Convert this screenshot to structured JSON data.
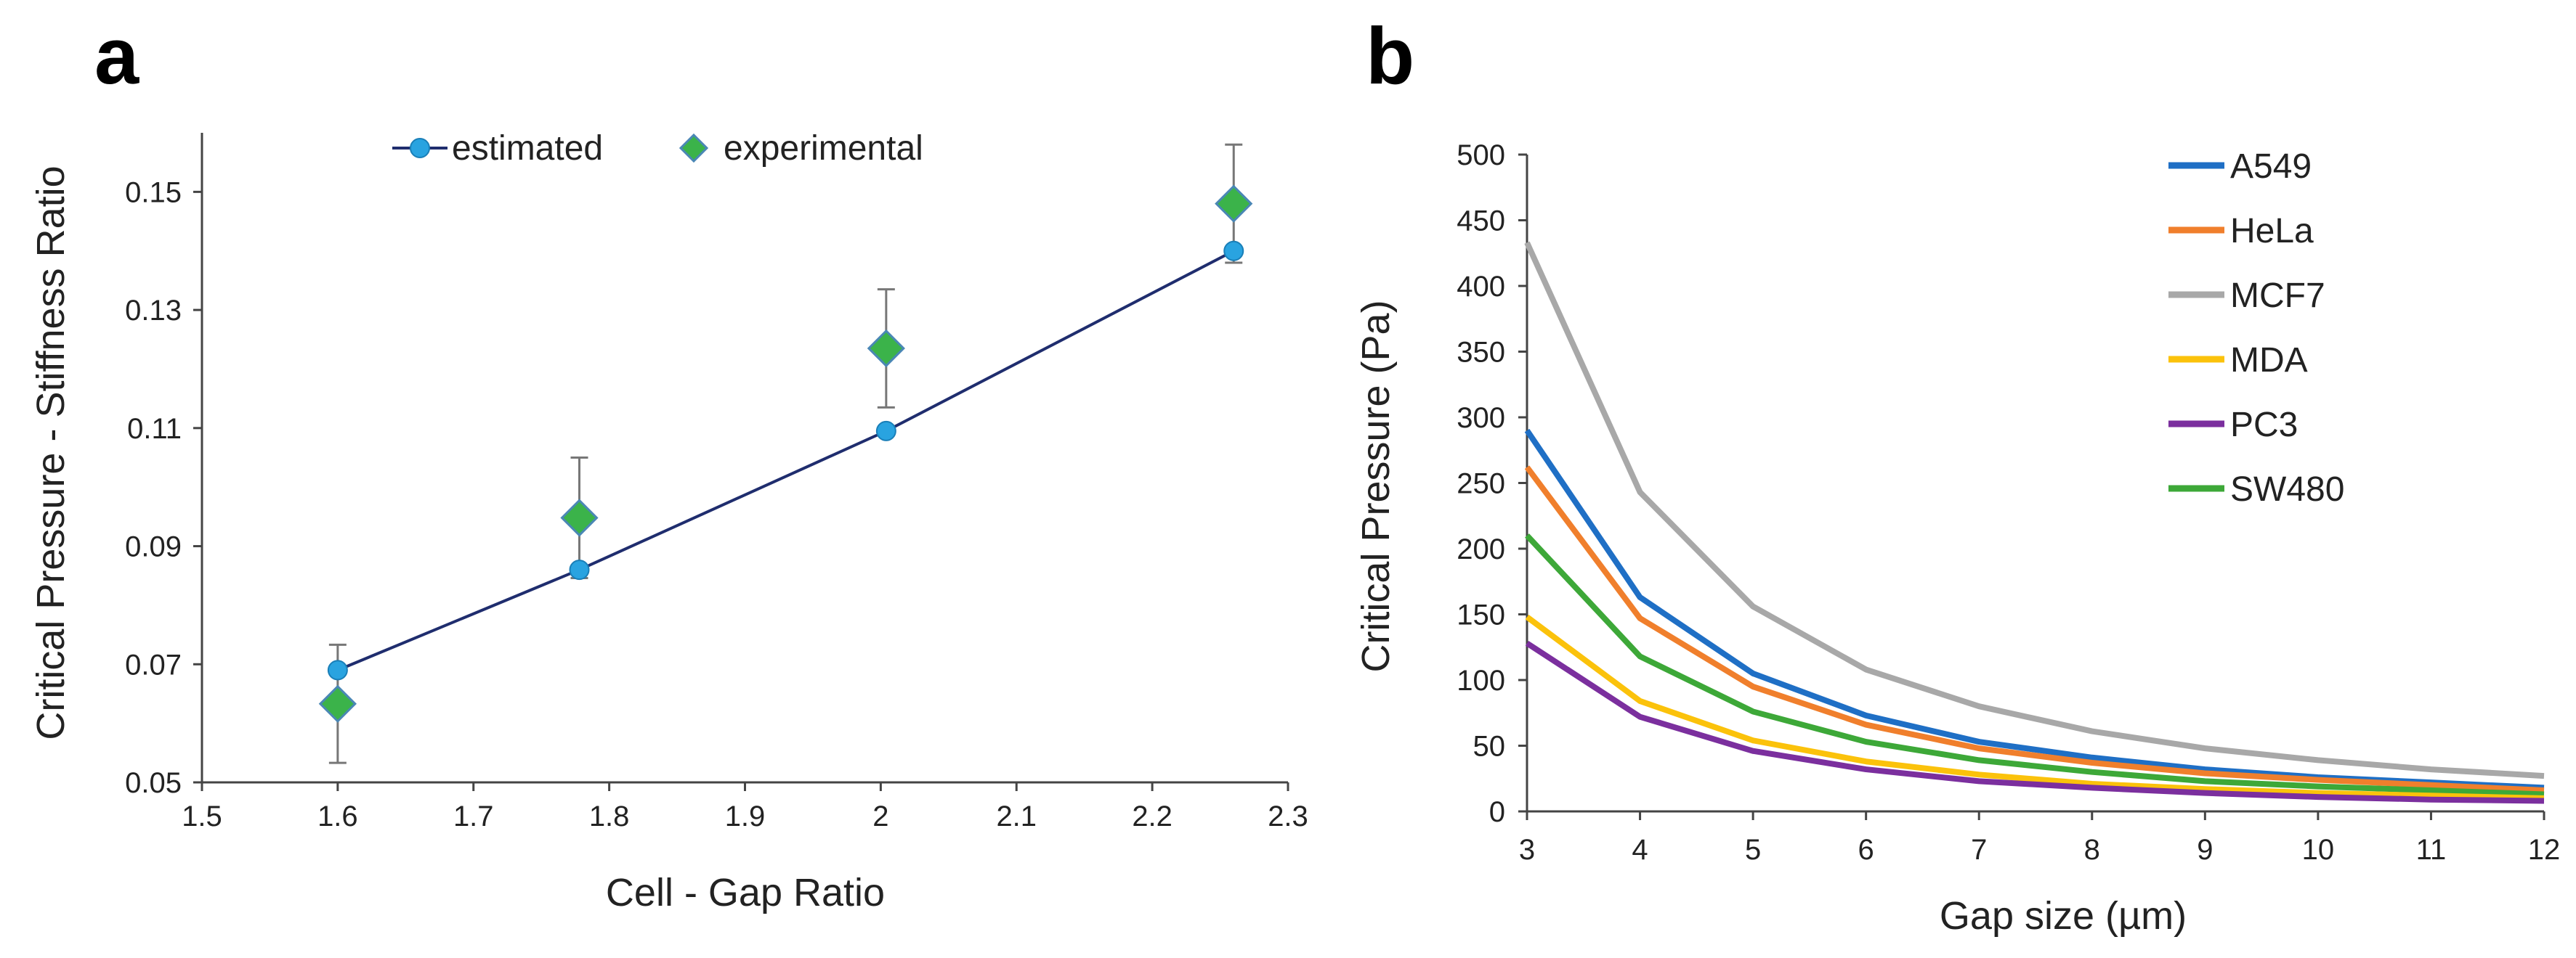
{
  "chart_data": [
    {
      "panel": "a",
      "type": "scatter",
      "xlabel": "Cell - Gap Ratio",
      "ylabel": "Critical Pressure - Stiffness Ratio",
      "xlim": [
        1.5,
        2.3
      ],
      "ylim": [
        0.05,
        0.16
      ],
      "xticks": [
        "1.5",
        "1.6",
        "1.7",
        "1.8",
        "1.9",
        "2",
        "2.1",
        "2.2",
        "2.3"
      ],
      "yticks": [
        "0.05",
        "0.07",
        "0.09",
        "0.11",
        "0.13",
        "0.15"
      ],
      "grid": false,
      "legend_position": "top",
      "series": [
        {
          "name": "estimated",
          "marker": "circle",
          "line": true,
          "color": "#1f2d6e",
          "marker_color": "#29a3e0",
          "x": [
            1.6,
            1.778,
            2.004,
            2.26
          ],
          "y": [
            0.069,
            0.086,
            0.1095,
            0.14
          ]
        },
        {
          "name": "experimental",
          "marker": "diamond",
          "line": false,
          "marker_color": "#3bb34a",
          "marker_edge": "#4a87b5",
          "x": [
            1.6,
            1.778,
            2.004,
            2.26
          ],
          "y": [
            0.0633,
            0.0948,
            0.1235,
            0.148
          ],
          "error": [
            0.01,
            0.0102,
            0.01,
            0.01
          ]
        }
      ]
    },
    {
      "panel": "b",
      "type": "line",
      "xlabel": "Gap size (µm)",
      "ylabel": "Critical Pressure (Pa)",
      "xlim": [
        3,
        12
      ],
      "ylim": [
        0,
        500
      ],
      "x": [
        3,
        4,
        5,
        6,
        7,
        8,
        9,
        10,
        11,
        12
      ],
      "xticks": [
        "3",
        "4",
        "5",
        "6",
        "7",
        "8",
        "9",
        "10",
        "11",
        "12"
      ],
      "yticks": [
        "0",
        "50",
        "100",
        "150",
        "200",
        "250",
        "300",
        "350",
        "400",
        "450",
        "500"
      ],
      "grid": false,
      "legend_position": "top-right",
      "series": [
        {
          "name": "A549",
          "color": "#1f6fc5",
          "values": [
            290,
            163,
            105,
            73,
            53,
            41,
            32,
            26,
            22,
            18
          ]
        },
        {
          "name": "HeLa",
          "color": "#f07f2c",
          "values": [
            262,
            147,
            95,
            66,
            48,
            37,
            29,
            24,
            20,
            16
          ]
        },
        {
          "name": "MCF7",
          "color": "#a8a8a8",
          "values": [
            433,
            243,
            156,
            108,
            80,
            61,
            48,
            39,
            32,
            27
          ]
        },
        {
          "name": "MDA",
          "color": "#fbc20b",
          "values": [
            148,
            84,
            54,
            38,
            28,
            21,
            17,
            14,
            12,
            10
          ]
        },
        {
          "name": "PC3",
          "color": "#7b2f9e",
          "values": [
            128,
            72,
            46,
            32,
            23,
            18,
            14,
            11,
            9,
            8
          ]
        },
        {
          "name": "SW480",
          "color": "#3da838",
          "values": [
            210,
            118,
            76,
            53,
            39,
            30,
            23,
            19,
            16,
            13
          ]
        }
      ]
    }
  ]
}
